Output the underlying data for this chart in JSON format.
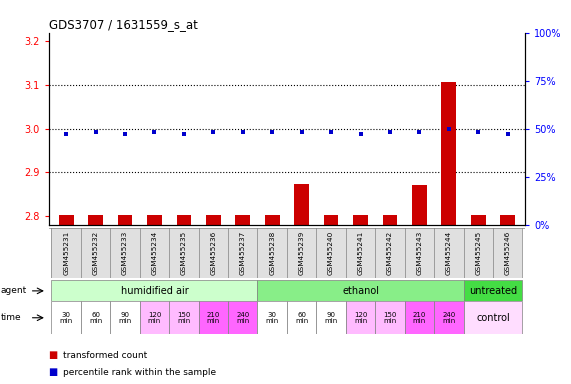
{
  "title": "GDS3707 / 1631559_s_at",
  "samples": [
    "GSM455231",
    "GSM455232",
    "GSM455233",
    "GSM455234",
    "GSM455235",
    "GSM455236",
    "GSM455237",
    "GSM455238",
    "GSM455239",
    "GSM455240",
    "GSM455241",
    "GSM455242",
    "GSM455243",
    "GSM455244",
    "GSM455245",
    "GSM455246"
  ],
  "transformed_count": [
    2.803,
    2.802,
    2.802,
    2.802,
    2.803,
    2.803,
    2.803,
    2.803,
    2.872,
    2.802,
    2.802,
    2.802,
    2.87,
    3.108,
    2.803,
    2.803
  ],
  "percentile_rank": [
    47,
    48,
    47,
    48,
    47,
    48,
    48,
    48,
    48,
    48,
    47,
    48,
    48,
    50,
    48,
    47
  ],
  "ylim_left": [
    2.78,
    3.22
  ],
  "ylim_right": [
    0,
    100
  ],
  "yticks_left": [
    2.8,
    2.9,
    3.0,
    3.1,
    3.2
  ],
  "yticks_right": [
    0,
    25,
    50,
    75,
    100
  ],
  "agent_info": [
    {
      "label": "humidified air",
      "start": 0,
      "end": 7,
      "color": "#ccffcc"
    },
    {
      "label": "ethanol",
      "start": 7,
      "end": 14,
      "color": "#88ee88"
    },
    {
      "label": "untreated",
      "start": 14,
      "end": 16,
      "color": "#44dd44"
    }
  ],
  "time_labels": [
    "30\nmin",
    "60\nmin",
    "90\nmin",
    "120\nmin",
    "150\nmin",
    "210\nmin",
    "240\nmin",
    "30\nmin",
    "60\nmin",
    "90\nmin",
    "120\nmin",
    "150\nmin",
    "210\nmin",
    "240\nmin"
  ],
  "time_colors": [
    "#ffffff",
    "#ffffff",
    "#ffffff",
    "#ffbbff",
    "#ffbbff",
    "#ff66ff",
    "#ff66ff",
    "#ffffff",
    "#ffffff",
    "#ffffff",
    "#ffbbff",
    "#ffbbff",
    "#ff66ff",
    "#ff66ff"
  ],
  "control_color": "#ffddff",
  "bar_color": "#cc0000",
  "dot_color": "#0000cc",
  "grid_dotted_vals": [
    2.9,
    3.0,
    3.1
  ]
}
